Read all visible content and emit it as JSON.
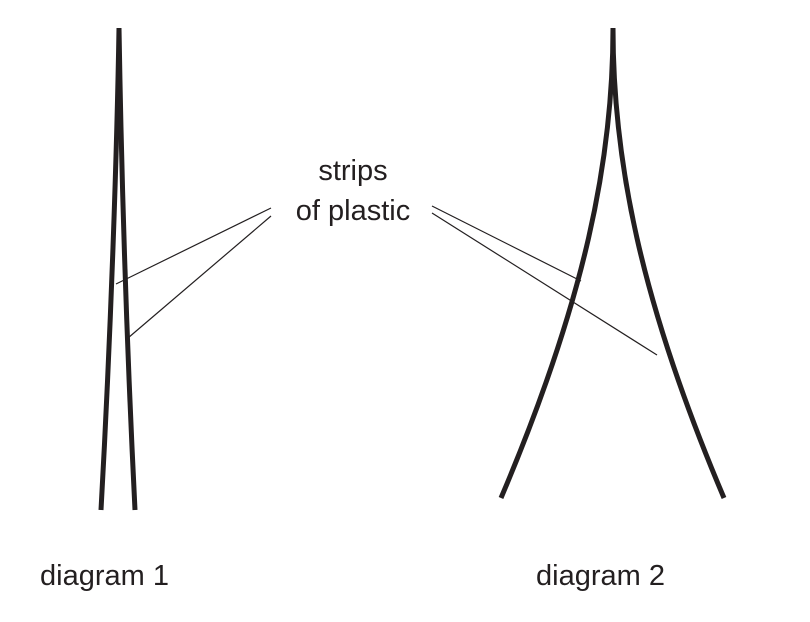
{
  "callout": {
    "line1": "strips",
    "line2": "of plastic"
  },
  "captions": {
    "diagram1": "diagram 1",
    "diagram2": "diagram 2"
  },
  "colors": {
    "ink": "#231f20"
  }
}
